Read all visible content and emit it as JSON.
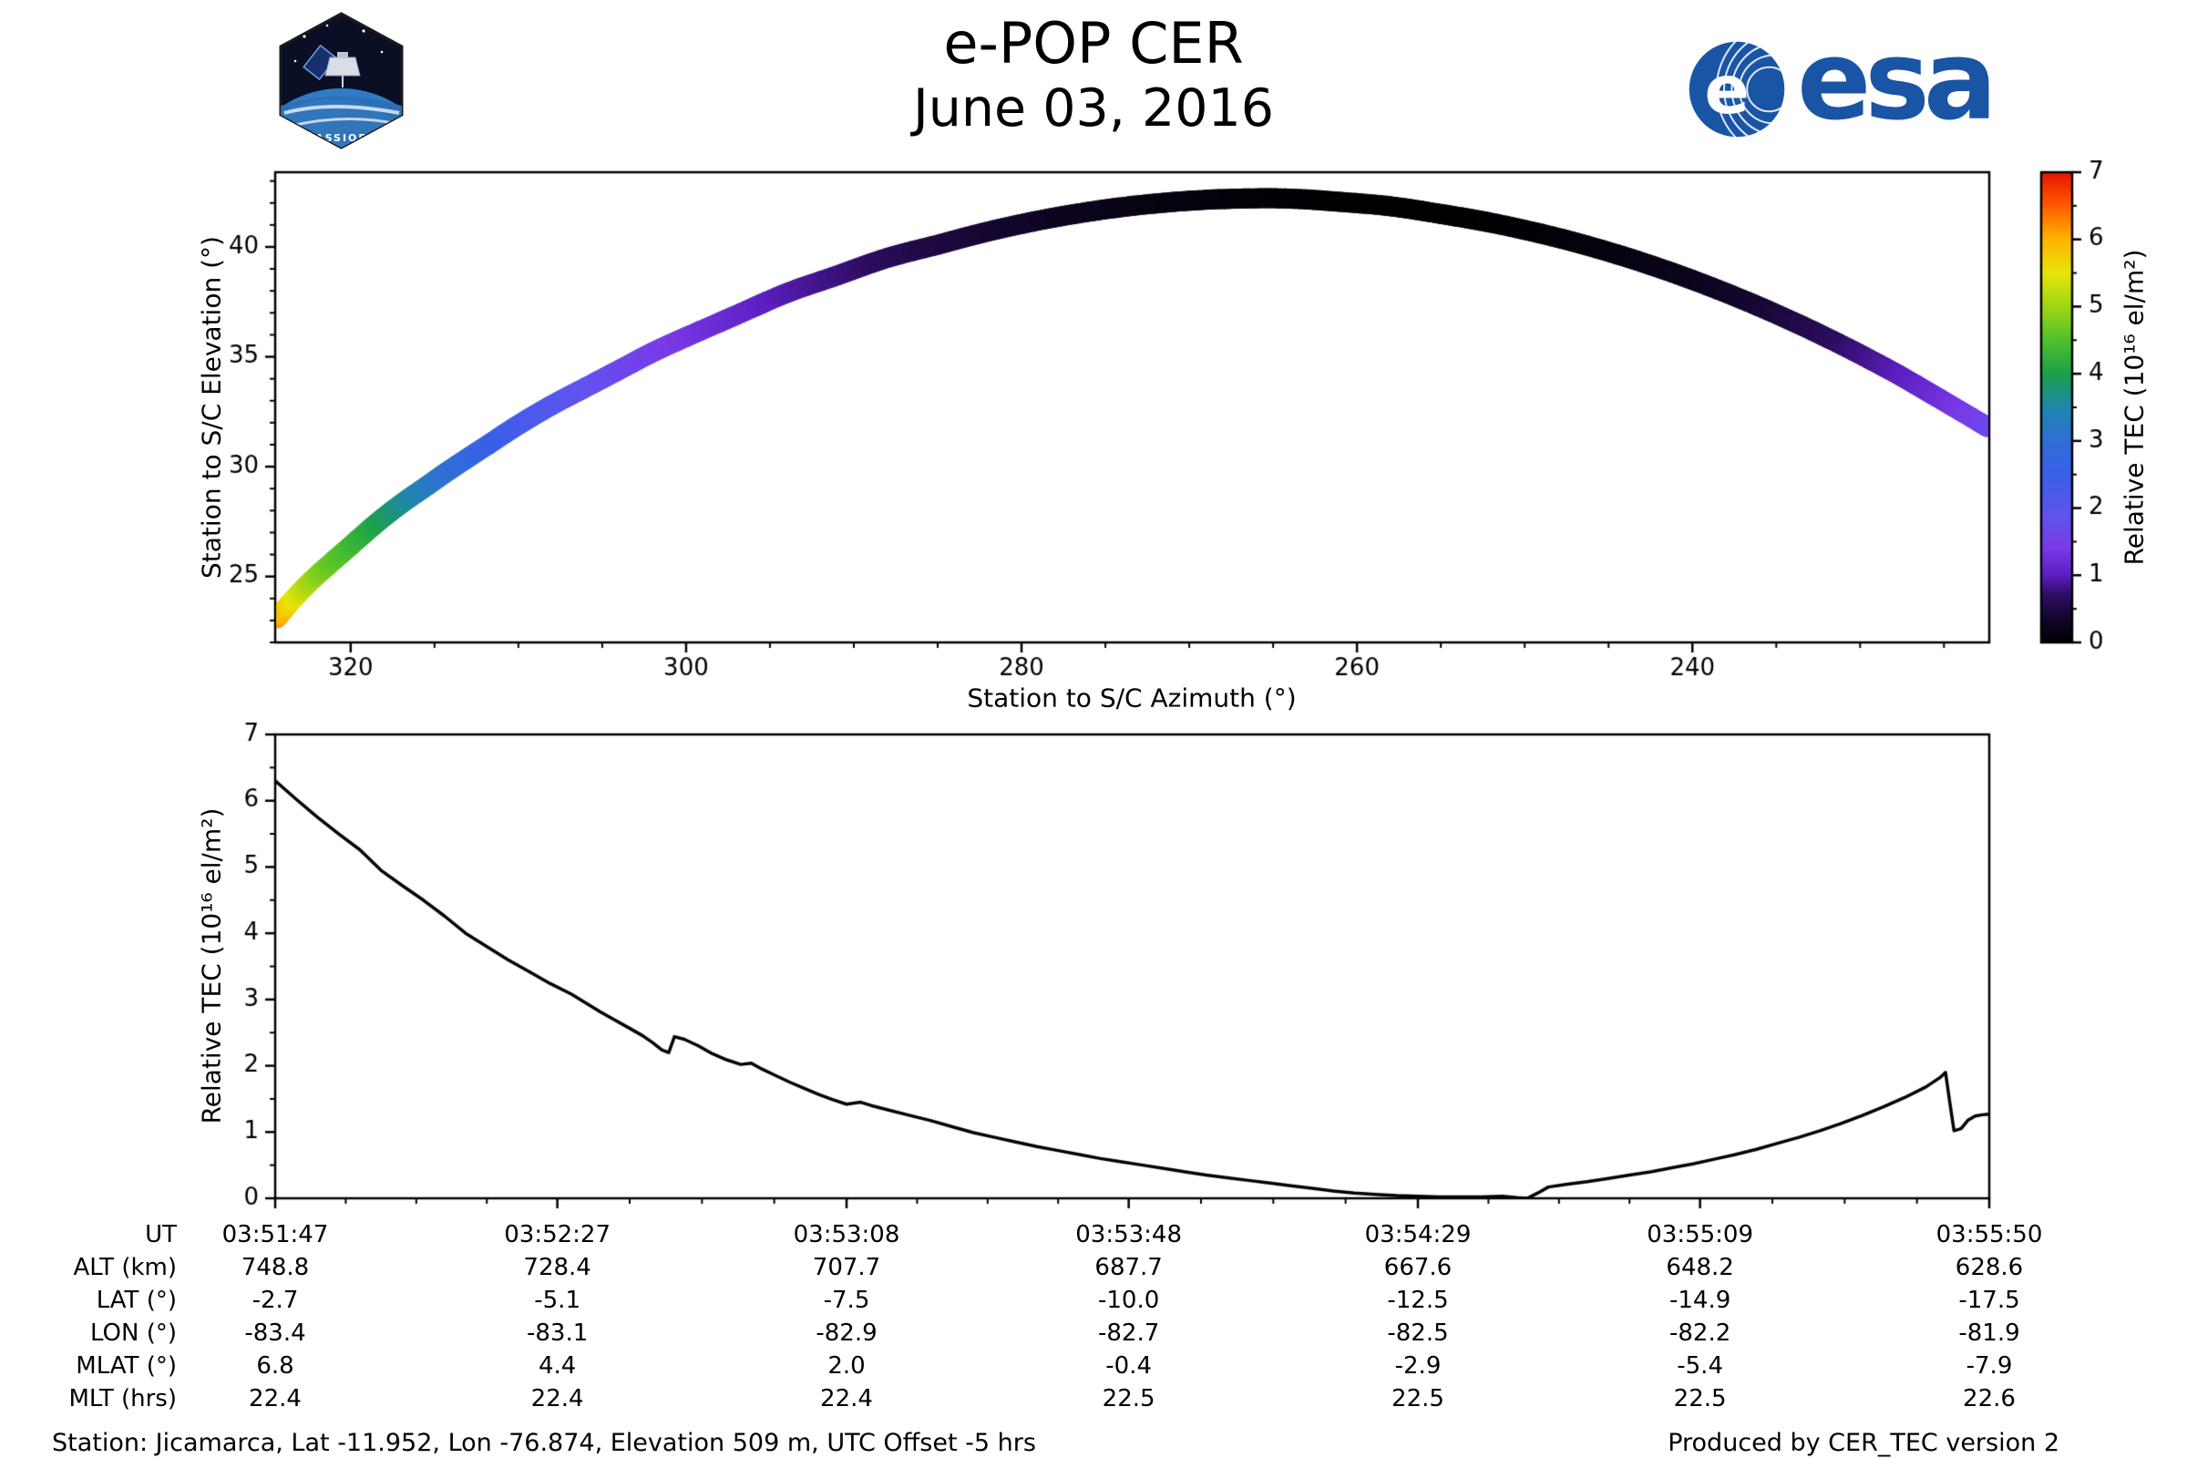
{
  "header": {
    "title": "e-POP CER",
    "date": "June 03, 2016",
    "patch_label": "CASSIOPE",
    "esa_label": "esa",
    "esa_brand_color": "#1a55a5"
  },
  "chart_data": [
    {
      "type": "scatter",
      "title": "",
      "xlabel": "Station to S/C Azimuth (°)",
      "ylabel": "Station to S/C Elevation (°)",
      "xlim": [
        324.5,
        222.3
      ],
      "ylim": [
        22.0,
        43.4
      ],
      "xticks": [
        320,
        300,
        280,
        260,
        240
      ],
      "yticks": [
        25,
        30,
        35,
        40
      ],
      "x_minor_step": 5,
      "y_minor_step": 1,
      "grid": false,
      "colorbar": {
        "label": "Relative TEC (10¹⁶ el/m²)",
        "min": 0,
        "max": 7,
        "ticks": [
          0,
          1,
          2,
          3,
          4,
          5,
          6,
          7
        ],
        "colormap": [
          {
            "t": 0.0,
            "c": "#000000"
          },
          {
            "t": 0.05,
            "c": "#12062a"
          },
          {
            "t": 0.1,
            "c": "#2e0d62"
          },
          {
            "t": 0.143,
            "c": "#5b1ec0"
          },
          {
            "t": 0.2,
            "c": "#7a3ae8"
          },
          {
            "t": 0.27,
            "c": "#5f54ee"
          },
          {
            "t": 0.357,
            "c": "#3a5fe8"
          },
          {
            "t": 0.43,
            "c": "#2f6fd6"
          },
          {
            "t": 0.5,
            "c": "#1f86ad"
          },
          {
            "t": 0.571,
            "c": "#1ba04b"
          },
          {
            "t": 0.643,
            "c": "#4fc12c"
          },
          {
            "t": 0.714,
            "c": "#9ed616"
          },
          {
            "t": 0.786,
            "c": "#e8e50a"
          },
          {
            "t": 0.857,
            "c": "#ffb300"
          },
          {
            "t": 0.93,
            "c": "#ff5a00"
          },
          {
            "t": 1.0,
            "c": "#e81400"
          }
        ]
      },
      "track": {
        "description": "satellite pass colored by Relative TEC; columns az_deg, elev_deg, tec",
        "points": [
          [
            324.4,
            23.1,
            6.25
          ],
          [
            323.5,
            23.9,
            5.6
          ],
          [
            322.5,
            24.7,
            5.1
          ],
          [
            321.5,
            25.4,
            4.75
          ],
          [
            320,
            26.4,
            4.4
          ],
          [
            318.5,
            27.4,
            4.05
          ],
          [
            317,
            28.3,
            3.7
          ],
          [
            315.5,
            29.1,
            3.35
          ],
          [
            314,
            29.9,
            3.0
          ],
          [
            312,
            30.9,
            2.65
          ],
          [
            310,
            31.9,
            2.35
          ],
          [
            308,
            32.8,
            2.1
          ],
          [
            306,
            33.6,
            1.9
          ],
          [
            304,
            34.4,
            1.7
          ],
          [
            302,
            35.2,
            1.5
          ],
          [
            300,
            35.9,
            1.35
          ],
          [
            297,
            36.9,
            1.15
          ],
          [
            294,
            37.9,
            0.95
          ],
          [
            291,
            38.7,
            0.8
          ],
          [
            288,
            39.5,
            0.65
          ],
          [
            285,
            40.1,
            0.5
          ],
          [
            282,
            40.7,
            0.4
          ],
          [
            279,
            41.2,
            0.32
          ],
          [
            276,
            41.6,
            0.24
          ],
          [
            273,
            41.9,
            0.17
          ],
          [
            270,
            42.1,
            0.12
          ],
          [
            267,
            42.2,
            0.08
          ],
          [
            264,
            42.2,
            0.05
          ],
          [
            261,
            42.05,
            0.03
          ],
          [
            258,
            41.85,
            0.02
          ],
          [
            255,
            41.5,
            0.02
          ],
          [
            252,
            41.1,
            0.03
          ],
          [
            249,
            40.6,
            0.06
          ],
          [
            246,
            40.0,
            0.1
          ],
          [
            243,
            39.3,
            0.16
          ],
          [
            240,
            38.5,
            0.24
          ],
          [
            237,
            37.6,
            0.35
          ],
          [
            234,
            36.6,
            0.5
          ],
          [
            231,
            35.5,
            0.7
          ],
          [
            228,
            34.3,
            0.95
          ],
          [
            225.5,
            33.2,
            1.2
          ],
          [
            223.5,
            32.3,
            1.45
          ],
          [
            222.4,
            31.8,
            1.65
          ]
        ]
      }
    },
    {
      "type": "line",
      "title": "",
      "xlabel": "UT",
      "ylabel": "Relative TEC (10¹⁶ el/m²)",
      "xlim": [
        0,
        243
      ],
      "ylim": [
        0,
        7
      ],
      "yticks": [
        0,
        1,
        2,
        3,
        4,
        5,
        6,
        7
      ],
      "y_minor_step": 0.5,
      "grid": false,
      "xticks": {
        "seconds": [
          0,
          40,
          81,
          121,
          162,
          202,
          243
        ],
        "labels": [
          "03:51:47",
          "03:52:27",
          "03:53:08",
          "03:53:48",
          "03:54:29",
          "03:55:09",
          "03:55:50"
        ]
      },
      "series": [
        {
          "name": "Relative TEC",
          "color": "#000000",
          "points": [
            [
              0,
              6.3
            ],
            [
              3,
              6.02
            ],
            [
              6,
              5.75
            ],
            [
              9,
              5.5
            ],
            [
              12,
              5.26
            ],
            [
              15,
              4.95
            ],
            [
              18,
              4.72
            ],
            [
              21,
              4.5
            ],
            [
              24,
              4.26
            ],
            [
              27,
              4.0
            ],
            [
              30,
              3.8
            ],
            [
              33,
              3.6
            ],
            [
              36,
              3.42
            ],
            [
              39,
              3.24
            ],
            [
              42,
              3.08
            ],
            [
              44,
              2.95
            ],
            [
              46,
              2.82
            ],
            [
              48,
              2.7
            ],
            [
              50,
              2.58
            ],
            [
              52,
              2.46
            ],
            [
              53.5,
              2.35
            ],
            [
              54.8,
              2.24
            ],
            [
              55.8,
              2.2
            ],
            [
              56.6,
              2.44
            ],
            [
              58,
              2.4
            ],
            [
              60,
              2.3
            ],
            [
              62,
              2.18
            ],
            [
              64,
              2.09
            ],
            [
              66,
              2.02
            ],
            [
              67.5,
              2.04
            ],
            [
              69,
              1.95
            ],
            [
              71,
              1.85
            ],
            [
              73,
              1.75
            ],
            [
              75,
              1.66
            ],
            [
              77,
              1.57
            ],
            [
              79,
              1.49
            ],
            [
              81,
              1.42
            ],
            [
              83,
              1.45
            ],
            [
              84.5,
              1.4
            ],
            [
              87,
              1.33
            ],
            [
              90,
              1.25
            ],
            [
              93,
              1.17
            ],
            [
              96,
              1.08
            ],
            [
              99,
              0.99
            ],
            [
              102,
              0.92
            ],
            [
              105,
              0.85
            ],
            [
              108,
              0.78
            ],
            [
              111,
              0.72
            ],
            [
              114,
              0.66
            ],
            [
              117,
              0.6
            ],
            [
              120,
              0.55
            ],
            [
              123,
              0.5
            ],
            [
              126,
              0.45
            ],
            [
              129,
              0.4
            ],
            [
              132,
              0.35
            ],
            [
              135,
              0.31
            ],
            [
              138,
              0.27
            ],
            [
              141,
              0.23
            ],
            [
              144,
              0.19
            ],
            [
              147,
              0.15
            ],
            [
              150,
              0.11
            ],
            [
              153,
              0.08
            ],
            [
              156,
              0.06
            ],
            [
              159,
              0.04
            ],
            [
              162,
              0.03
            ],
            [
              165,
              0.02
            ],
            [
              168,
              0.02
            ],
            [
              171,
              0.02
            ],
            [
              174,
              0.03
            ],
            [
              176,
              0.01
            ],
            [
              177.5,
              0.0
            ],
            [
              179,
              0.08
            ],
            [
              180.5,
              0.17
            ],
            [
              183,
              0.21
            ],
            [
              186,
              0.25
            ],
            [
              189,
              0.3
            ],
            [
              192,
              0.35
            ],
            [
              195,
              0.4
            ],
            [
              198,
              0.46
            ],
            [
              201,
              0.52
            ],
            [
              204,
              0.59
            ],
            [
              207,
              0.66
            ],
            [
              210,
              0.74
            ],
            [
              213,
              0.83
            ],
            [
              216,
              0.92
            ],
            [
              219,
              1.02
            ],
            [
              222,
              1.13
            ],
            [
              225,
              1.25
            ],
            [
              228,
              1.38
            ],
            [
              231,
              1.52
            ],
            [
              234,
              1.68
            ],
            [
              236,
              1.82
            ],
            [
              236.8,
              1.9
            ],
            [
              237.4,
              1.45
            ],
            [
              238,
              1.02
            ],
            [
              239,
              1.05
            ],
            [
              240,
              1.18
            ],
            [
              241,
              1.24
            ],
            [
              242,
              1.26
            ],
            [
              243,
              1.27
            ]
          ]
        }
      ]
    }
  ],
  "table": {
    "rows": [
      {
        "label": "UT",
        "values": [
          "03:51:47",
          "03:52:27",
          "03:53:08",
          "03:53:48",
          "03:54:29",
          "03:55:09",
          "03:55:50"
        ]
      },
      {
        "label": "ALT (km)",
        "values": [
          "748.8",
          "728.4",
          "707.7",
          "687.7",
          "667.6",
          "648.2",
          "628.6"
        ]
      },
      {
        "label": "LAT (°)",
        "values": [
          "-2.7",
          "-5.1",
          "-7.5",
          "-10.0",
          "-12.5",
          "-14.9",
          "-17.5"
        ]
      },
      {
        "label": "LON (°)",
        "values": [
          "-83.4",
          "-83.1",
          "-82.9",
          "-82.7",
          "-82.5",
          "-82.2",
          "-81.9"
        ]
      },
      {
        "label": "MLAT (°)",
        "values": [
          "6.8",
          "4.4",
          "2.0",
          "-0.4",
          "-2.9",
          "-5.4",
          "-7.9"
        ]
      },
      {
        "label": "MLT (hrs)",
        "values": [
          "22.4",
          "22.4",
          "22.4",
          "22.5",
          "22.5",
          "22.5",
          "22.6"
        ]
      }
    ]
  },
  "footer": {
    "station": "Station: Jicamarca, Lat -11.952, Lon -76.874, Elevation 509 m, UTC Offset -5 hrs",
    "produced": "Produced by CER_TEC version 2"
  }
}
